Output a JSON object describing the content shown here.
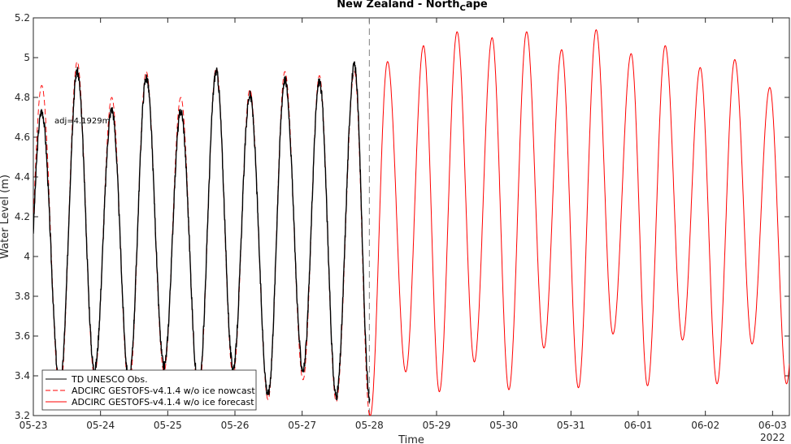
{
  "chart_data": {
    "type": "line",
    "title_main": "New Zealand - North",
    "title_sub": "C",
    "title_end": "ape",
    "xlabel": "Time",
    "ylabel": "Water Level (m)",
    "ylim": [
      3.2,
      5.2
    ],
    "xlim_days": [
      "2022-05-23 00:00",
      "2022-06-03 06:00"
    ],
    "yticks": [
      3.2,
      3.4,
      3.6,
      3.8,
      4,
      4.2,
      4.4,
      4.6,
      4.8,
      5,
      5.2
    ],
    "ytick_labels": [
      "3.2",
      "3.4",
      "3.6",
      "3.8",
      "4",
      "4.2",
      "4.4",
      "4.6",
      "4.8",
      "5",
      "5.2"
    ],
    "xtick_labels": [
      "05-23",
      "05-24",
      "05-25",
      "05-26",
      "05-27",
      "05-28",
      "05-29",
      "05-30",
      "05-31",
      "06-01",
      "06-02",
      "06-03"
    ],
    "year_label": "2022",
    "nowcast_end": "2022-05-28 00:00",
    "annotation": "adj=4.1929m",
    "grid": false,
    "legend_position": "bottom-left",
    "series": [
      {
        "name": "TD UNESCO Obs.",
        "color": "#000000",
        "style": "solid",
        "x": [
          "2022-05-23 00:00",
          "2022-05-28 00:00"
        ],
        "highs": [
          {
            "t": "2022-05-23 03:00",
            "v": 4.73
          },
          {
            "t": "2022-05-23 15:40",
            "v": 4.93
          },
          {
            "t": "2022-05-24 04:00",
            "v": 4.74
          },
          {
            "t": "2022-05-24 16:20",
            "v": 4.9
          },
          {
            "t": "2022-05-25 04:40",
            "v": 4.73
          },
          {
            "t": "2022-05-25 17:20",
            "v": 4.93
          },
          {
            "t": "2022-05-26 05:20",
            "v": 4.81
          },
          {
            "t": "2022-05-26 17:50",
            "v": 4.89
          },
          {
            "t": "2022-05-27 06:10",
            "v": 4.88
          },
          {
            "t": "2022-05-27 18:40",
            "v": 4.96
          }
        ],
        "lows": [
          {
            "t": "2022-05-23 09:30",
            "v": 3.35
          },
          {
            "t": "2022-05-23 21:50",
            "v": 3.43
          },
          {
            "t": "2022-05-24 10:10",
            "v": 3.38
          },
          {
            "t": "2022-05-24 22:40",
            "v": 3.45
          },
          {
            "t": "2022-05-25 11:00",
            "v": 3.34
          },
          {
            "t": "2022-05-25 23:20",
            "v": 3.44
          },
          {
            "t": "2022-05-26 11:50",
            "v": 3.31
          },
          {
            "t": "2022-05-27 00:20",
            "v": 3.43
          },
          {
            "t": "2022-05-27 12:10",
            "v": 3.3
          },
          {
            "t": "2022-05-28 00:10",
            "v": 3.28
          }
        ]
      },
      {
        "name": "ADCIRC GESTOFS-v4.1.4 w/o ice nowcast",
        "color": "#ff0000",
        "style": "dashed",
        "highs": [
          {
            "t": "2022-05-23 03:00",
            "v": 4.86
          },
          {
            "t": "2022-05-23 15:40",
            "v": 4.98
          },
          {
            "t": "2022-05-24 04:00",
            "v": 4.8
          },
          {
            "t": "2022-05-24 16:20",
            "v": 4.93
          },
          {
            "t": "2022-05-25 04:40",
            "v": 4.8
          },
          {
            "t": "2022-05-25 17:20",
            "v": 4.95
          },
          {
            "t": "2022-05-26 05:20",
            "v": 4.84
          },
          {
            "t": "2022-05-26 17:50",
            "v": 4.93
          },
          {
            "t": "2022-05-27 06:10",
            "v": 4.91
          },
          {
            "t": "2022-05-27 18:40",
            "v": 4.93
          }
        ],
        "lows": [
          {
            "t": "2022-05-23 09:30",
            "v": 3.3
          },
          {
            "t": "2022-05-23 21:50",
            "v": 3.4
          },
          {
            "t": "2022-05-24 10:10",
            "v": 3.33
          },
          {
            "t": "2022-05-24 22:40",
            "v": 3.42
          },
          {
            "t": "2022-05-25 11:00",
            "v": 3.3
          },
          {
            "t": "2022-05-25 23:20",
            "v": 3.4
          },
          {
            "t": "2022-05-26 11:50",
            "v": 3.28
          },
          {
            "t": "2022-05-27 00:20",
            "v": 3.38
          },
          {
            "t": "2022-05-27 12:10",
            "v": 3.27
          },
          {
            "t": "2022-05-28 00:10",
            "v": 3.2
          }
        ]
      },
      {
        "name": "ADCIRC GESTOFS-v4.1.4 w/o ice forecast",
        "color": "#ff0000",
        "style": "solid",
        "highs": [
          {
            "t": "2022-05-28 06:30",
            "v": 4.98
          },
          {
            "t": "2022-05-28 19:20",
            "v": 5.06
          },
          {
            "t": "2022-05-29 07:20",
            "v": 5.13
          },
          {
            "t": "2022-05-29 19:50",
            "v": 5.1
          },
          {
            "t": "2022-05-30 08:10",
            "v": 5.13
          },
          {
            "t": "2022-05-30 20:40",
            "v": 5.04
          },
          {
            "t": "2022-05-31 09:00",
            "v": 5.14
          },
          {
            "t": "2022-05-31 21:30",
            "v": 5.02
          },
          {
            "t": "2022-06-01 09:40",
            "v": 5.06
          },
          {
            "t": "2022-06-01 22:10",
            "v": 4.95
          },
          {
            "t": "2022-06-02 10:30",
            "v": 4.99
          },
          {
            "t": "2022-06-02 23:00",
            "v": 4.85
          }
        ],
        "lows": [
          {
            "t": "2022-05-28 00:20",
            "v": 3.2
          },
          {
            "t": "2022-05-28 13:00",
            "v": 3.42
          },
          {
            "t": "2022-05-29 01:00",
            "v": 3.32
          },
          {
            "t": "2022-05-29 13:30",
            "v": 3.47
          },
          {
            "t": "2022-05-30 01:50",
            "v": 3.33
          },
          {
            "t": "2022-05-30 14:20",
            "v": 3.54
          },
          {
            "t": "2022-05-31 02:40",
            "v": 3.34
          },
          {
            "t": "2022-05-31 15:00",
            "v": 3.61
          },
          {
            "t": "2022-06-01 03:20",
            "v": 3.35
          },
          {
            "t": "2022-06-01 15:50",
            "v": 3.58
          },
          {
            "t": "2022-06-02 04:10",
            "v": 3.36
          },
          {
            "t": "2022-06-02 16:40",
            "v": 3.56
          },
          {
            "t": "2022-06-03 05:00",
            "v": 3.36
          }
        ]
      }
    ]
  }
}
